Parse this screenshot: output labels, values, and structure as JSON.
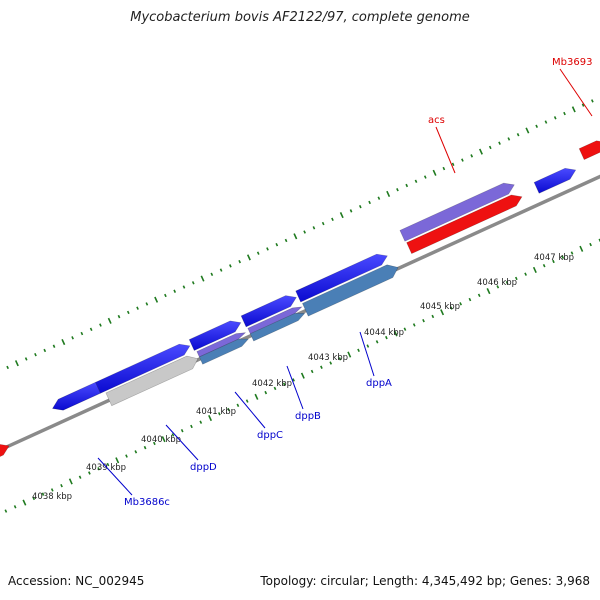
{
  "title": "Mycobacterium bovis AF2122/97, complete genome",
  "accession_text": "Accession: NC_002945",
  "summary_text": "Topology: circular; Length: 4,345,492 bp; Genes: 3,968",
  "colors": {
    "backbone": "#8a8a8a",
    "tick": "#1f7a1f",
    "scale_label": "#222222",
    "forward_gene": "#1414e6",
    "reverse_gene": "#1414e6",
    "highlight_red": "#ee1111",
    "highlight_purple": "#7b68d8",
    "highlight_steel": "#4a7fb6",
    "highlight_gray": "#c8c8c8",
    "red_label": "#dd0000",
    "blue_label": "#0000cc"
  },
  "scale_labels": [
    "4038 kbp",
    "4039 kbp",
    "4040 kbp",
    "4041 kbp",
    "4042 kbp",
    "4043 kbp",
    "4044 kbp",
    "4045 kbp",
    "4046 kbp",
    "4047 kbp"
  ],
  "gene_labels": [
    {
      "name": "acs",
      "color": "red"
    },
    {
      "name": "Mb3693",
      "color": "red"
    },
    {
      "name": "dppA",
      "color": "blue"
    },
    {
      "name": "dppB",
      "color": "blue"
    },
    {
      "name": "dppC",
      "color": "blue"
    },
    {
      "name": "dppD",
      "color": "blue"
    },
    {
      "name": "Mb3686c",
      "color": "blue"
    }
  ]
}
